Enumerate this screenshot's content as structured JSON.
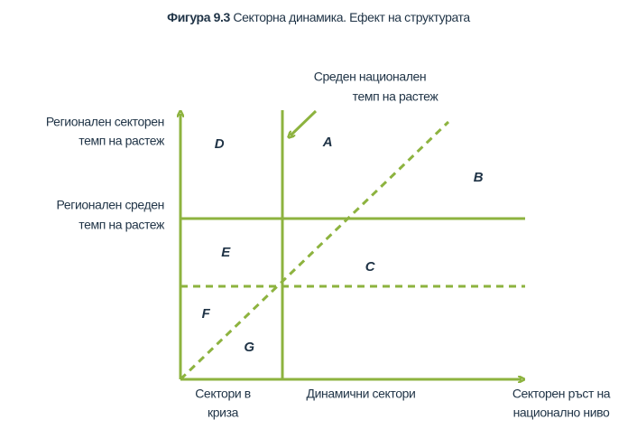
{
  "title": {
    "label": "Фигура 9.3",
    "text": "Секторна динамика. Ефект на структурата"
  },
  "national_rate": [
    "Среден националeн",
    "темп на растеж"
  ],
  "y_axis_label": [
    "Регионален секторен",
    "темп на растеж"
  ],
  "regional_rate": [
    "Регионален среден",
    "темп на растеж"
  ],
  "crisis_sectors": [
    "Сектори в",
    "криза"
  ],
  "dynamic_sectors": "Динамични сектори",
  "x_axis_label": [
    "Секторен ръст на",
    "национално ниво"
  ],
  "zones": [
    "D",
    "A",
    "B",
    "E",
    "C",
    "F",
    "G"
  ]
}
